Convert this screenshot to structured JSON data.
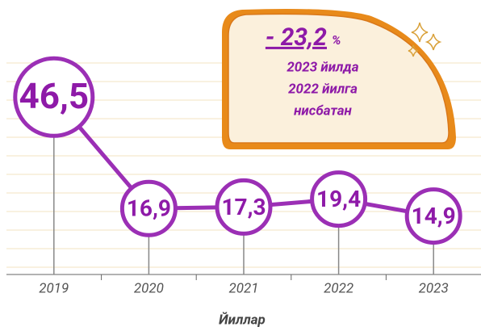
{
  "chart_data": {
    "type": "line",
    "categories": [
      "2019",
      "2020",
      "2021",
      "2022",
      "2023"
    ],
    "values": [
      46.5,
      16.9,
      17.3,
      19.4,
      14.9
    ],
    "value_labels": [
      "46,5",
      "16,9",
      "17,3",
      "19,4",
      "14,9"
    ],
    "color": "#9b2fb5",
    "ylim": [
      0,
      50
    ],
    "x_label": "Йиллар",
    "annotation": {
      "change": "- 23,2",
      "unit": "%",
      "lines": [
        "2023 йилда",
        "2022 йилга",
        "нисбатан"
      ]
    }
  }
}
